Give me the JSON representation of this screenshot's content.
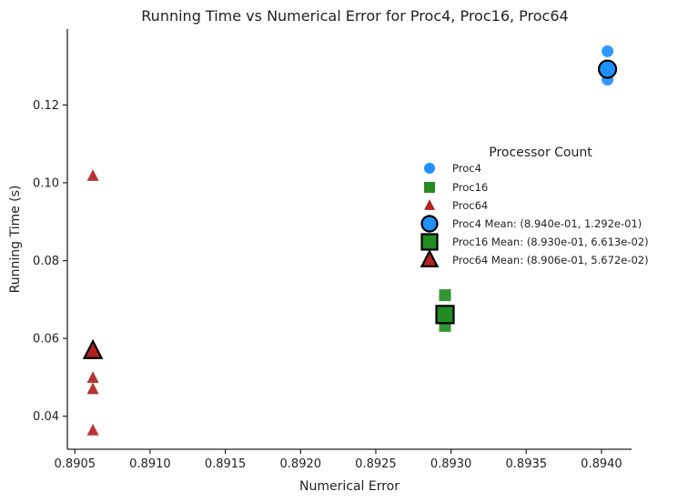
{
  "chart_data": {
    "type": "scatter",
    "title": "Running Time vs Numerical Error for Proc4, Proc16, Proc64",
    "xlabel": "Numerical Error",
    "ylabel": "Running Time (s)",
    "xlim": [
      0.89045,
      0.8942
    ],
    "ylim": [
      0.0315,
      0.1395
    ],
    "xticks": [
      0.8905,
      0.891,
      0.8915,
      0.892,
      0.8925,
      0.893,
      0.8935,
      0.894
    ],
    "xtick_labels": [
      "0.8905",
      "0.8910",
      "0.8915",
      "0.8920",
      "0.8925",
      "0.8930",
      "0.8935",
      "0.8940"
    ],
    "yticks": [
      0.04,
      0.06,
      0.08,
      0.1,
      0.12
    ],
    "ytick_labels": [
      "0.04",
      "0.06",
      "0.08",
      "0.10",
      "0.12"
    ],
    "grid": false,
    "legend_title": "Processor Count",
    "legend_position": "right",
    "series": [
      {
        "name": "Proc4",
        "marker": "circle",
        "color": "#1e90ff",
        "points": [
          {
            "x": 0.89404,
            "y": 0.1338
          },
          {
            "x": 0.89404,
            "y": 0.1292
          },
          {
            "x": 0.89404,
            "y": 0.1265
          }
        ]
      },
      {
        "name": "Proc16",
        "marker": "square",
        "color": "#228b22",
        "points": [
          {
            "x": 0.89296,
            "y": 0.0711
          },
          {
            "x": 0.89296,
            "y": 0.0661
          },
          {
            "x": 0.89296,
            "y": 0.0632
          }
        ]
      },
      {
        "name": "Proc64",
        "marker": "triangle",
        "color": "#b22222",
        "points": [
          {
            "x": 0.89062,
            "y": 0.1017
          },
          {
            "x": 0.89062,
            "y": 0.0498
          },
          {
            "x": 0.89062,
            "y": 0.0469
          },
          {
            "x": 0.89062,
            "y": 0.0363
          }
        ]
      }
    ],
    "means": [
      {
        "name": "Proc4 Mean: (8.940e-01, 1.292e-01)",
        "marker": "circle",
        "color": "#1e90ff",
        "x": 0.89404,
        "y": 0.1292
      },
      {
        "name": "Proc16 Mean: (8.930e-01, 6.613e-02)",
        "marker": "square",
        "color": "#228b22",
        "x": 0.89296,
        "y": 0.06613
      },
      {
        "name": "Proc64 Mean: (8.906e-01, 5.672e-02)",
        "marker": "triangle",
        "color": "#b22222",
        "x": 0.89062,
        "y": 0.05672
      }
    ]
  }
}
